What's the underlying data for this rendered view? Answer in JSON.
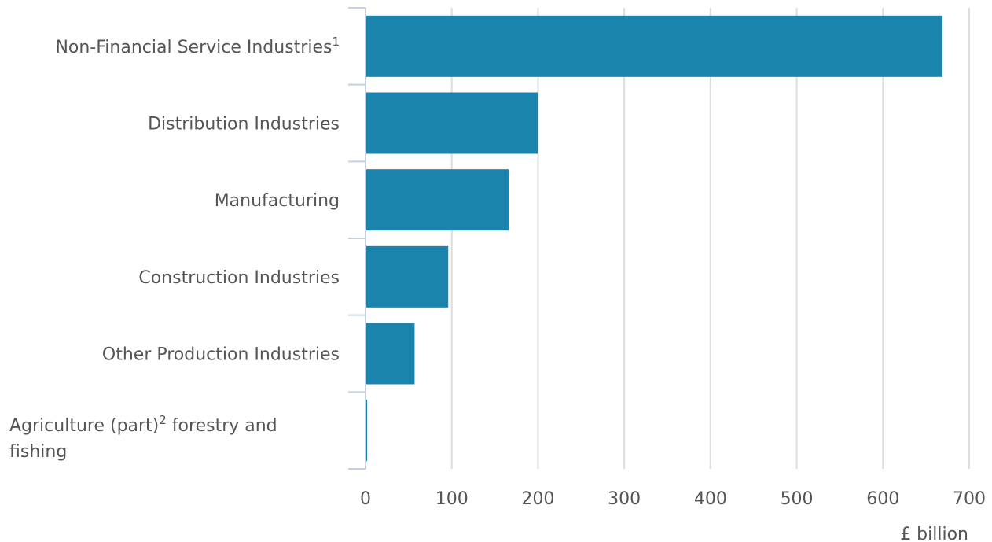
{
  "chart_data": {
    "type": "bar",
    "orientation": "horizontal",
    "categories": [
      {
        "text": "Non-Financial Service Industries",
        "sup": "1"
      },
      {
        "text": "Distribution Industries"
      },
      {
        "text": "Manufacturing"
      },
      {
        "text": "Construction Industries"
      },
      {
        "text": "Other Production Industries"
      },
      {
        "text": "Agriculture (part)",
        "sup": "2",
        "text_after": " forestry and",
        "text_line2": "fishing"
      }
    ],
    "values": [
      668,
      199,
      165,
      95,
      56,
      1
    ],
    "xlabel": "£ billion",
    "xlim": [
      0,
      700
    ],
    "xticks": [
      0,
      100,
      200,
      300,
      400,
      500,
      600,
      700
    ],
    "grid": true,
    "bar_color": "#1b84ad",
    "text_color": "#555555",
    "grid_color": "#dddddd",
    "axis_color": "#c6d0e2"
  }
}
